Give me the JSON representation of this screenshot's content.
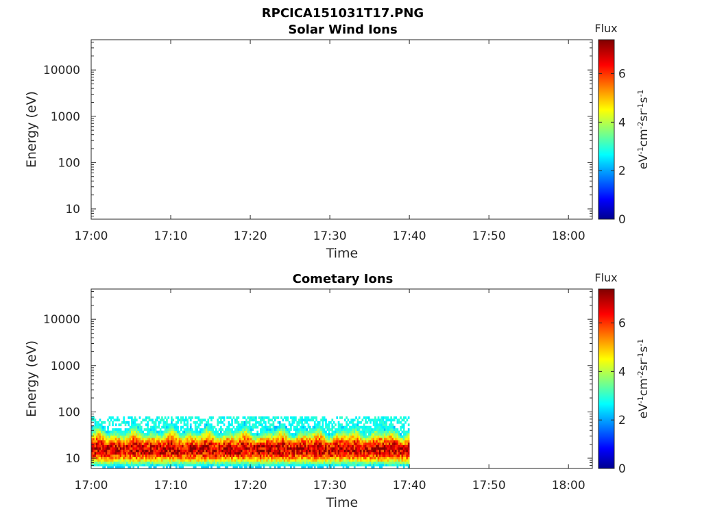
{
  "figure": {
    "title": "RPCICA151031T17.PNG"
  },
  "chart_data": [
    {
      "type": "heatmap",
      "title": "Solar Wind Ions",
      "xlabel": "Time",
      "ylabel": "Energy (eV)",
      "y_scale": "log",
      "ylim": [
        6,
        45000
      ],
      "x_ticks": [
        "17:00",
        "17:10",
        "17:20",
        "17:30",
        "17:40",
        "17:50",
        "18:00"
      ],
      "xlim": [
        "17:00",
        "18:03"
      ],
      "y_ticks": [
        10,
        100,
        1000,
        10000
      ],
      "y_tick_labels": [
        "10",
        "100",
        "1000",
        "10000"
      ],
      "colorbar": {
        "title": "Flux",
        "label": "eV-1cm-2sr-1s-1",
        "ticks": [
          "0",
          "2",
          "4",
          "6"
        ],
        "range": [
          0,
          7.4
        ],
        "colormap": "jet"
      },
      "data": []
    },
    {
      "type": "heatmap",
      "title": "Cometary Ions",
      "xlabel": "Time",
      "ylabel": "Energy (eV)",
      "y_scale": "log",
      "ylim": [
        6,
        45000
      ],
      "x_ticks": [
        "17:00",
        "17:10",
        "17:20",
        "17:30",
        "17:40",
        "17:50",
        "18:00"
      ],
      "xlim": [
        "17:00",
        "18:03"
      ],
      "y_ticks": [
        10,
        100,
        1000,
        10000
      ],
      "y_tick_labels": [
        "10",
        "100",
        "1000",
        "10000"
      ],
      "colorbar": {
        "title": "Flux",
        "label": "eV-1cm-2sr-1s-1",
        "ticks": [
          "0",
          "2",
          "4",
          "6"
        ],
        "range": [
          0,
          7.4
        ],
        "colormap": "jet"
      },
      "data": {
        "time_range": [
          "17:00",
          "17:40"
        ],
        "energy_range_eV": [
          6,
          80
        ],
        "peak_energy_eV": 15,
        "peak_flux": 7.0
      }
    }
  ]
}
